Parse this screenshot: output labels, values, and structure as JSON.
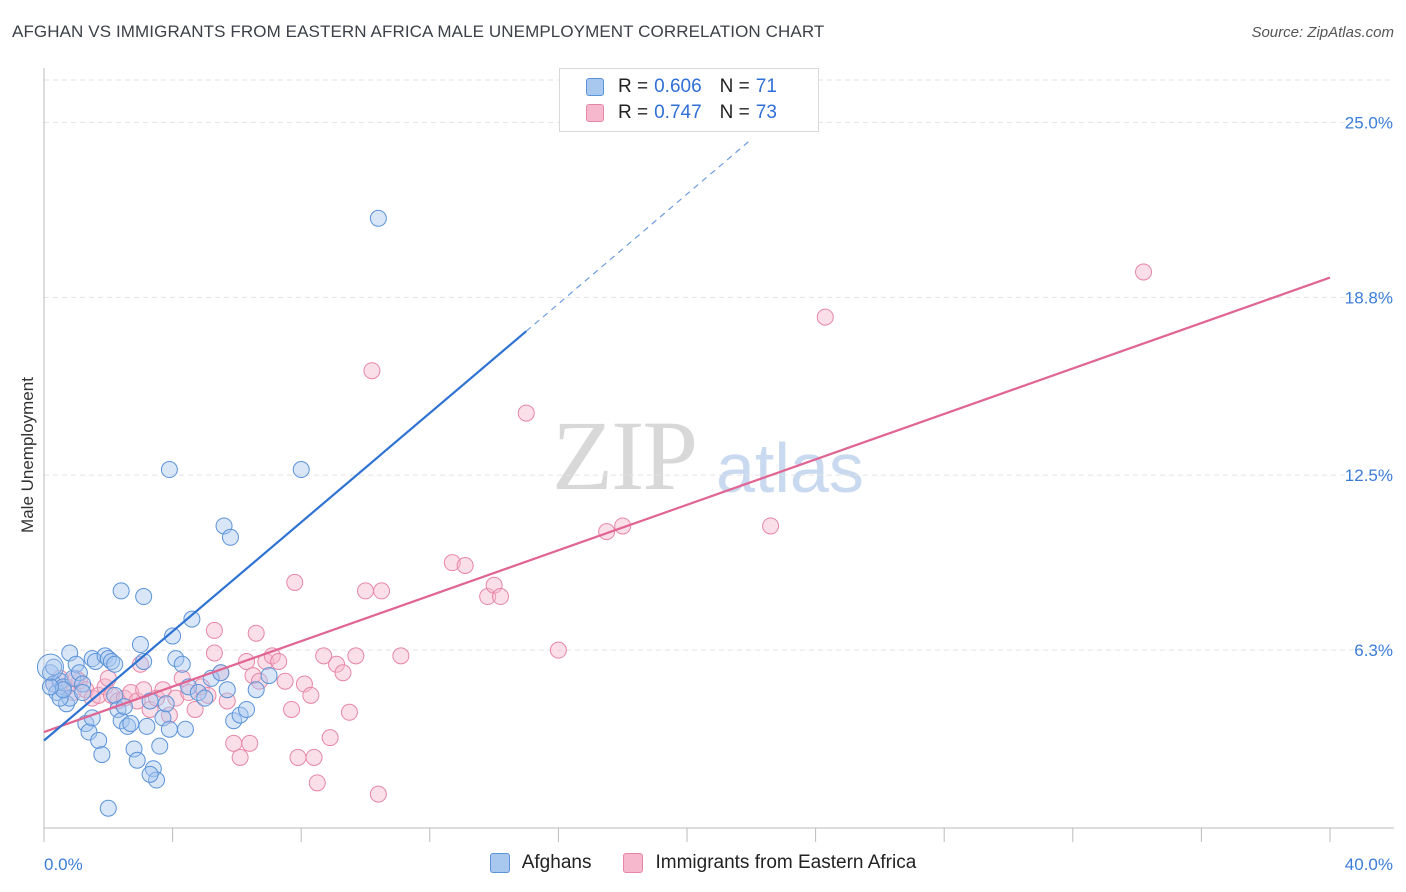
{
  "header": {
    "title": "AFGHAN VS IMMIGRANTS FROM EASTERN AFRICA MALE UNEMPLOYMENT CORRELATION CHART",
    "source": "Source: ZipAtlas.com"
  },
  "watermark": {
    "zip": "ZIP",
    "atlas": "atlas"
  },
  "legend": {
    "rows": [
      {
        "r_label": "R =",
        "r_value": "0.606",
        "n_label": "N =",
        "n_value": "71"
      },
      {
        "r_label": "R =",
        "r_value": "0.747",
        "n_label": "N =",
        "n_value": "73"
      }
    ],
    "bottom": [
      "Afghans",
      "Immigrants from Eastern Africa"
    ]
  },
  "colors": {
    "blue_fill": "#a8c8f0",
    "blue_stroke": "#5b93d8",
    "blue_line": "#2f73d2",
    "pink_fill": "#f6b8cc",
    "pink_stroke": "#e686a6",
    "pink_line": "#e06593",
    "grid": "#e3e3e3",
    "axis": "#bbbbbb"
  },
  "chart_data": {
    "type": "scatter",
    "title": "AFGHAN VS IMMIGRANTS FROM EASTERN AFRICA MALE UNEMPLOYMENT CORRELATION CHART",
    "xlabel": "",
    "ylabel": "Male Unemployment",
    "xlim": [
      0,
      40
    ],
    "ylim": [
      0,
      26.5
    ],
    "x_tick_labels": [
      "0.0%",
      "40.0%"
    ],
    "y_ticks": [
      6.3,
      12.5,
      18.8,
      25.0
    ],
    "y_tick_labels": [
      "6.3%",
      "12.5%",
      "18.8%",
      "25.0%"
    ],
    "grid": true,
    "series": [
      {
        "name": "Afghans",
        "r": 0.606,
        "n": 71,
        "trend": {
          "x0": 0,
          "y0": 3.1,
          "x1": 15,
          "y1": 17.6,
          "dash_to_x": 22,
          "dash_to_y": 24.4
        },
        "points": [
          [
            0.2,
            5.5
          ],
          [
            0.3,
            5.1
          ],
          [
            0.4,
            4.8
          ],
          [
            0.5,
            5.2
          ],
          [
            0.6,
            5.0
          ],
          [
            0.7,
            4.4
          ],
          [
            0.8,
            4.6
          ],
          [
            0.8,
            6.2
          ],
          [
            0.9,
            5.3
          ],
          [
            1.0,
            5.8
          ],
          [
            1.1,
            5.5
          ],
          [
            1.2,
            5.1
          ],
          [
            1.3,
            3.7
          ],
          [
            1.4,
            3.4
          ],
          [
            1.5,
            6.0
          ],
          [
            1.6,
            5.9
          ],
          [
            1.7,
            3.1
          ],
          [
            1.8,
            2.6
          ],
          [
            1.9,
            6.1
          ],
          [
            2.0,
            6.0
          ],
          [
            2.1,
            5.9
          ],
          [
            2.2,
            5.8
          ],
          [
            2.2,
            4.7
          ],
          [
            2.3,
            4.2
          ],
          [
            2.4,
            3.8
          ],
          [
            2.5,
            4.3
          ],
          [
            2.6,
            3.6
          ],
          [
            2.7,
            3.7
          ],
          [
            2.8,
            2.8
          ],
          [
            2.9,
            2.4
          ],
          [
            3.0,
            6.5
          ],
          [
            3.1,
            5.9
          ],
          [
            3.2,
            3.6
          ],
          [
            3.3,
            4.5
          ],
          [
            3.4,
            2.1
          ],
          [
            3.5,
            1.7
          ],
          [
            3.6,
            2.9
          ],
          [
            3.7,
            3.9
          ],
          [
            3.8,
            4.4
          ],
          [
            3.9,
            3.5
          ],
          [
            4.0,
            6.8
          ],
          [
            4.1,
            6.0
          ],
          [
            4.3,
            5.8
          ],
          [
            4.5,
            5.0
          ],
          [
            4.6,
            7.4
          ],
          [
            4.8,
            4.8
          ],
          [
            5.0,
            4.6
          ],
          [
            5.2,
            5.3
          ],
          [
            5.5,
            5.5
          ],
          [
            5.7,
            4.9
          ],
          [
            5.9,
            3.8
          ],
          [
            6.1,
            4.0
          ],
          [
            6.3,
            4.2
          ],
          [
            6.6,
            4.9
          ],
          [
            7.0,
            5.4
          ],
          [
            2.4,
            8.4
          ],
          [
            3.1,
            8.2
          ],
          [
            3.9,
            12.7
          ],
          [
            5.6,
            10.7
          ],
          [
            5.8,
            10.3
          ],
          [
            8.0,
            12.7
          ],
          [
            10.4,
            21.6
          ],
          [
            1.2,
            4.8
          ],
          [
            2.0,
            0.7
          ],
          [
            0.5,
            4.6
          ],
          [
            1.5,
            3.9
          ],
          [
            0.3,
            5.7
          ],
          [
            0.6,
            4.9
          ],
          [
            0.2,
            5.0
          ],
          [
            3.3,
            1.9
          ],
          [
            4.4,
            3.5
          ]
        ]
      },
      {
        "name": "Immigrants from Eastern Africa",
        "r": 0.747,
        "n": 73,
        "trend": {
          "x0": 0,
          "y0": 3.4,
          "x1": 40,
          "y1": 19.5
        },
        "points": [
          [
            0.3,
            5.1
          ],
          [
            0.5,
            5.3
          ],
          [
            0.7,
            5.0
          ],
          [
            0.9,
            4.8
          ],
          [
            1.1,
            5.2
          ],
          [
            1.3,
            4.9
          ],
          [
            1.5,
            4.6
          ],
          [
            1.7,
            4.7
          ],
          [
            1.9,
            5.0
          ],
          [
            2.1,
            4.7
          ],
          [
            2.3,
            4.5
          ],
          [
            2.5,
            4.6
          ],
          [
            2.7,
            4.8
          ],
          [
            2.9,
            4.5
          ],
          [
            3.1,
            4.9
          ],
          [
            3.3,
            4.2
          ],
          [
            3.5,
            4.6
          ],
          [
            3.7,
            4.9
          ],
          [
            3.9,
            4.0
          ],
          [
            4.1,
            4.6
          ],
          [
            4.3,
            5.3
          ],
          [
            4.5,
            4.8
          ],
          [
            4.7,
            4.2
          ],
          [
            4.9,
            5.0
          ],
          [
            5.1,
            4.7
          ],
          [
            5.3,
            6.2
          ],
          [
            5.5,
            5.5
          ],
          [
            5.7,
            4.5
          ],
          [
            5.9,
            3.0
          ],
          [
            6.1,
            2.5
          ],
          [
            6.3,
            5.9
          ],
          [
            6.5,
            5.4
          ],
          [
            6.7,
            5.2
          ],
          [
            6.9,
            5.9
          ],
          [
            7.1,
            6.1
          ],
          [
            7.3,
            5.9
          ],
          [
            7.5,
            5.2
          ],
          [
            7.7,
            4.2
          ],
          [
            7.9,
            2.5
          ],
          [
            8.1,
            5.1
          ],
          [
            8.3,
            4.7
          ],
          [
            8.5,
            1.6
          ],
          [
            8.7,
            6.1
          ],
          [
            8.9,
            3.2
          ],
          [
            9.1,
            5.8
          ],
          [
            9.3,
            5.5
          ],
          [
            9.5,
            4.1
          ],
          [
            9.7,
            6.1
          ],
          [
            10.0,
            8.4
          ],
          [
            10.4,
            1.2
          ],
          [
            11.1,
            6.1
          ],
          [
            12.7,
            9.4
          ],
          [
            13.1,
            9.3
          ],
          [
            13.8,
            8.2
          ],
          [
            14.0,
            8.6
          ],
          [
            14.2,
            8.2
          ],
          [
            16.0,
            6.3
          ],
          [
            17.5,
            10.5
          ],
          [
            18.0,
            10.7
          ],
          [
            22.6,
            10.7
          ],
          [
            24.3,
            18.1
          ],
          [
            34.2,
            19.7
          ],
          [
            15.0,
            14.7
          ],
          [
            10.2,
            16.2
          ],
          [
            7.8,
            8.7
          ],
          [
            10.5,
            8.4
          ],
          [
            6.6,
            6.9
          ],
          [
            5.3,
            7.0
          ],
          [
            6.4,
            3.0
          ],
          [
            8.4,
            2.5
          ],
          [
            3.0,
            5.8
          ],
          [
            2.0,
            5.3
          ],
          [
            1.0,
            5.3
          ]
        ]
      }
    ]
  }
}
